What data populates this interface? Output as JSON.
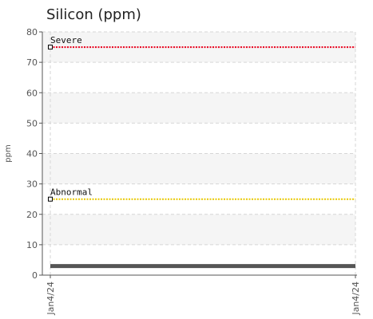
{
  "chart_data": {
    "type": "line",
    "title": "Silicon (ppm)",
    "xlabel": "",
    "ylabel": "ppm",
    "ylim": [
      0,
      80
    ],
    "yticks": [
      0,
      10,
      20,
      30,
      40,
      50,
      60,
      70,
      80
    ],
    "xticks": [
      "Jan4/24",
      "Jan4/24"
    ],
    "grid": true,
    "thresholds": [
      {
        "label": "Severe",
        "value": 75,
        "color": "#e8001c"
      },
      {
        "label": "Abnormal",
        "value": 25,
        "color": "#e8c800"
      }
    ],
    "series": [
      {
        "x": [
          "Jan4/24",
          "Jan4/24"
        ],
        "values": [
          3,
          3
        ],
        "color": "#555555"
      }
    ]
  }
}
